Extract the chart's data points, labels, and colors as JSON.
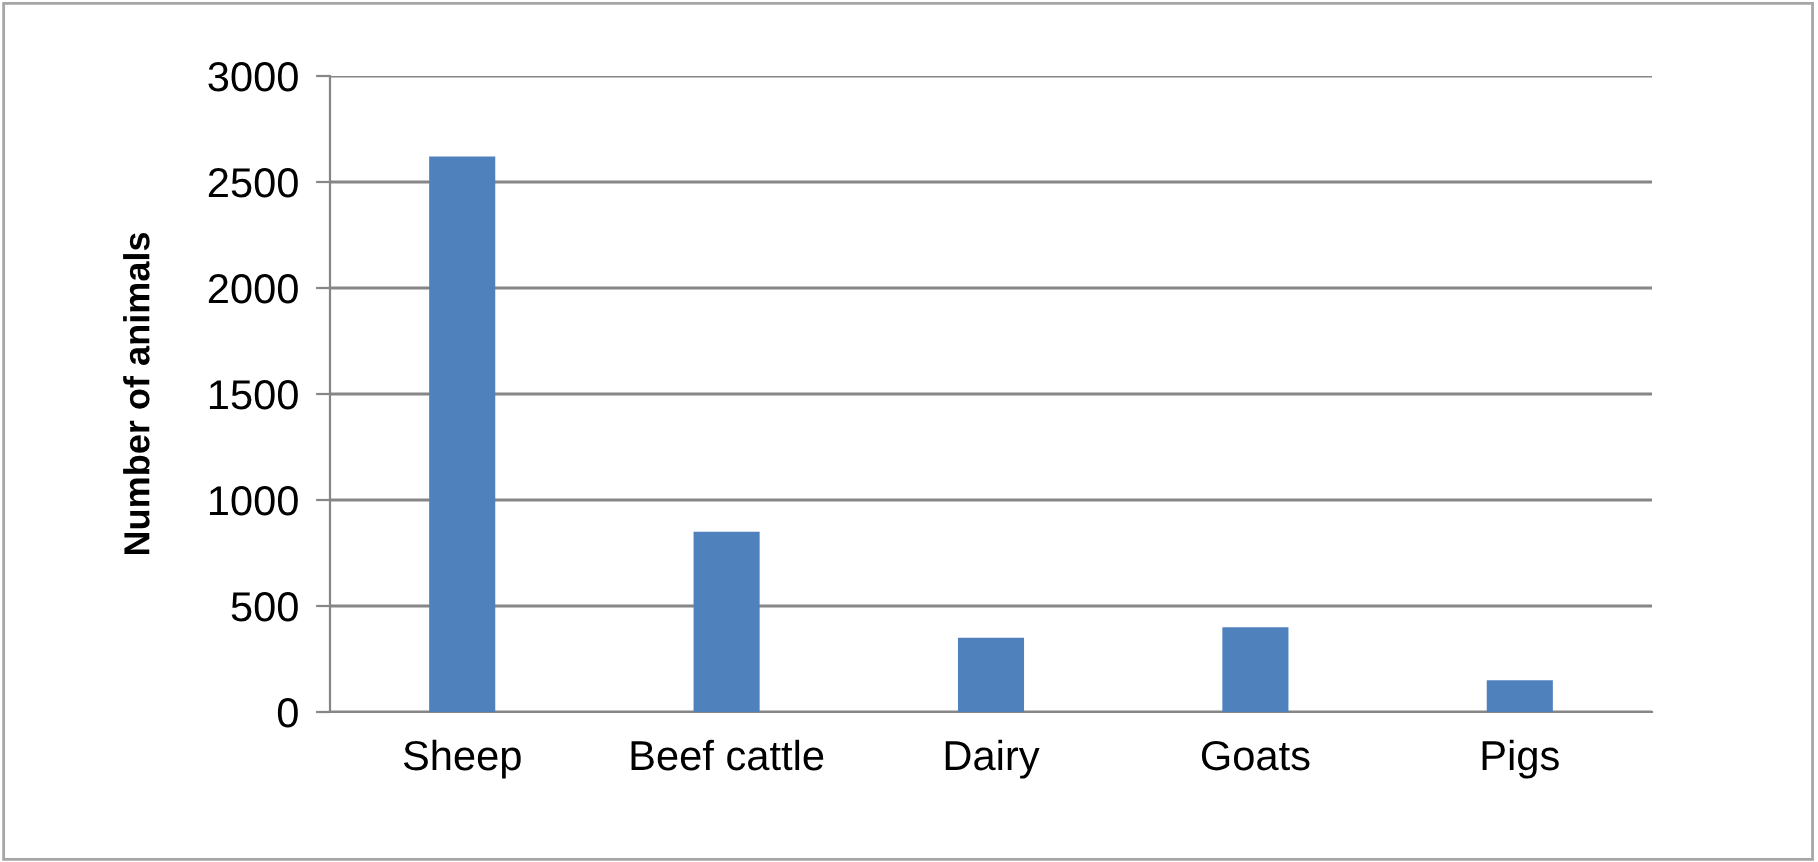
{
  "chart_data": {
    "type": "bar",
    "ylabel": "Number of animals",
    "categories": [
      "Sheep",
      "Beef cattle",
      "Dairy",
      "Goats",
      "Pigs"
    ],
    "values": [
      2620,
      850,
      350,
      400,
      150
    ],
    "color": "#4f81bd",
    "ylim": [
      0,
      3000
    ],
    "yticks": [
      0,
      500,
      1000,
      1500,
      2000,
      2500,
      3000
    ],
    "grid": "y"
  }
}
